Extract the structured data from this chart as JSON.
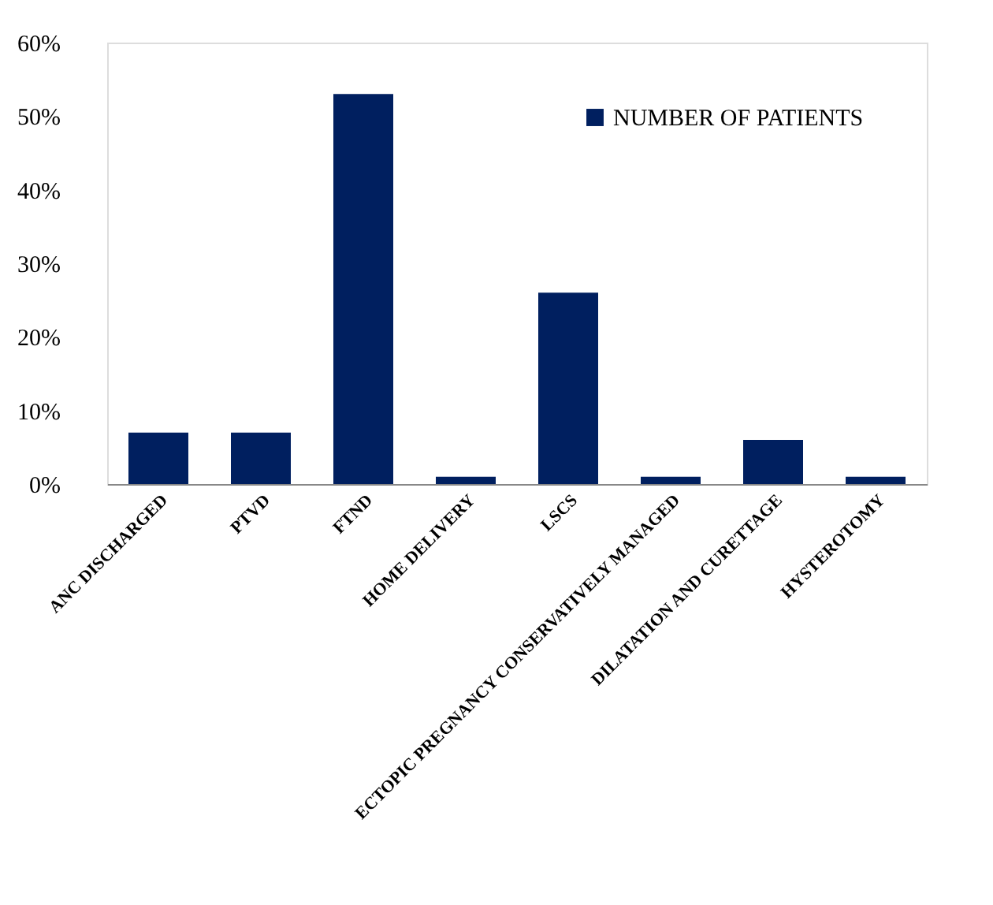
{
  "chart_data": {
    "type": "bar",
    "categories": [
      "ANC DISCHARGED",
      "PTVD",
      "FTND",
      "HOME DELIVERY",
      "LSCS",
      "ECTOPIC PREGNANCY CONSERVATIVELY MANAGED",
      "DILATATION AND CURETTAGE",
      "HYSTEROTOMY"
    ],
    "series": [
      {
        "name": "NUMBER OF PATIENTS",
        "color": "#001f5f",
        "values": [
          7,
          7,
          53,
          1,
          26,
          1,
          6,
          1
        ]
      }
    ],
    "ylim": [
      0,
      60
    ],
    "yticks": [
      {
        "value": 0,
        "label": "0%"
      },
      {
        "value": 10,
        "label": "10%"
      },
      {
        "value": 20,
        "label": "20%"
      },
      {
        "value": 30,
        "label": "30%"
      },
      {
        "value": 40,
        "label": "40%"
      },
      {
        "value": 50,
        "label": "50%"
      },
      {
        "value": 60,
        "label": "60%"
      }
    ],
    "grid": false,
    "legend": "top right"
  }
}
